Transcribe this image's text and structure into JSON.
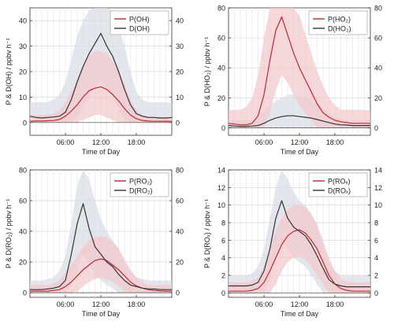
{
  "figure": {
    "x_tick_labels": [
      "06:00",
      "12:00",
      "18:00"
    ],
    "xlabel": "Time of Day"
  },
  "colors": {
    "production": "#c0272d",
    "destruction": "#333333",
    "production_band": "#f4c7cb",
    "destruction_band": "#d9dbe6"
  },
  "chart_data": [
    {
      "type": "line",
      "ylabel": "P & D(OH) / ppbv h⁻¹",
      "xlabel": "Time of Day",
      "xlim": [
        0,
        24
      ],
      "ylim": [
        -5,
        45
      ],
      "yticks": [
        0,
        10,
        20,
        30,
        40
      ],
      "right_axis_mirror": true,
      "legend_position": "top-right",
      "x_hours": [
        0,
        1,
        2,
        3,
        4,
        5,
        6,
        7,
        8,
        9,
        10,
        11,
        12,
        13,
        14,
        15,
        16,
        17,
        18,
        19,
        20,
        21,
        22,
        23,
        24
      ],
      "series": [
        {
          "name": "P(OH)",
          "role": "production",
          "values": [
            0.5,
            0.6,
            0.6,
            0.7,
            0.8,
            1.2,
            2.5,
            4.5,
            7,
            10,
            12.5,
            13.5,
            14,
            13,
            11,
            8.5,
            5.5,
            3,
            1.5,
            0.8,
            0.6,
            0.5,
            0.5,
            0.5,
            0.5
          ],
          "band_upper": [
            3,
            3,
            3,
            3,
            3.5,
            5,
            8,
            12,
            17,
            22,
            26,
            28,
            28,
            27,
            24,
            20,
            15,
            9,
            5,
            3,
            2.5,
            2,
            2,
            2,
            2
          ],
          "band_lower": [
            0,
            0,
            0,
            0,
            0,
            0,
            0,
            0,
            0,
            1,
            2,
            3,
            3,
            2,
            1,
            0,
            0,
            0,
            0,
            0,
            0,
            0,
            0,
            0,
            0
          ]
        },
        {
          "name": "D(OH)",
          "role": "destruction",
          "values": [
            2.5,
            2,
            1.8,
            2,
            2.2,
            2.5,
            4,
            9,
            16,
            22,
            27,
            31,
            35,
            30,
            26,
            20,
            13,
            7,
            3.5,
            2.5,
            2,
            2,
            1.8,
            1.8,
            2
          ],
          "band_upper": [
            8,
            8,
            8,
            8,
            9,
            11,
            16,
            25,
            34,
            40,
            44,
            45,
            45,
            45,
            44,
            38,
            30,
            20,
            12,
            9,
            8,
            8,
            8,
            8,
            8
          ],
          "band_lower": [
            0,
            0,
            0,
            0,
            0,
            0,
            0,
            0,
            2,
            6,
            10,
            14,
            16,
            14,
            10,
            5,
            1,
            0,
            0,
            0,
            0,
            0,
            0,
            0,
            0
          ]
        }
      ]
    },
    {
      "type": "line",
      "ylabel": "P & D(HO₂) / ppbv h⁻¹",
      "xlabel": "Time of Day",
      "xlim": [
        0,
        24
      ],
      "ylim": [
        -5,
        80
      ],
      "yticks": [
        0,
        20,
        40,
        60,
        80
      ],
      "right_axis_mirror": true,
      "legend_position": "top-right",
      "x_hours": [
        0,
        1,
        2,
        3,
        4,
        5,
        6,
        7,
        8,
        9,
        10,
        11,
        12,
        13,
        14,
        15,
        16,
        17,
        18,
        19,
        20,
        21,
        22,
        23,
        24
      ],
      "series": [
        {
          "name": "P(HO₂)",
          "role": "production",
          "values": [
            3,
            2.5,
            2,
            2,
            3,
            8,
            22,
            45,
            65,
            74,
            62,
            50,
            40,
            32,
            24,
            16,
            10,
            7,
            5,
            4,
            3.5,
            3,
            3,
            3,
            3
          ],
          "band_upper": [
            12,
            12,
            12,
            14,
            20,
            35,
            60,
            80,
            80,
            80,
            80,
            80,
            75,
            62,
            50,
            38,
            28,
            20,
            15,
            12,
            12,
            12,
            12,
            12,
            12
          ],
          "band_lower": [
            0,
            0,
            0,
            0,
            0,
            0,
            0,
            10,
            25,
            35,
            30,
            22,
            15,
            10,
            5,
            0,
            0,
            0,
            0,
            0,
            0,
            0,
            0,
            0,
            0
          ]
        },
        {
          "name": "D(HO₂)",
          "role": "destruction",
          "values": [
            1.5,
            1.2,
            1,
            1,
            1.2,
            1.5,
            3,
            5,
            6.5,
            7.5,
            8,
            8,
            7.5,
            7,
            6.5,
            5.5,
            4.5,
            3.5,
            2.5,
            2,
            1.8,
            1.5,
            1.5,
            1.5,
            1.5
          ],
          "band_upper": [
            5,
            5,
            5,
            5,
            5,
            6,
            10,
            15,
            18,
            20,
            22,
            22,
            21,
            20,
            18,
            16,
            13,
            10,
            7,
            6,
            5,
            5,
            5,
            5,
            5
          ],
          "band_lower": [
            0,
            0,
            0,
            0,
            0,
            0,
            0,
            0,
            0,
            0,
            0,
            0,
            0,
            0,
            0,
            0,
            0,
            0,
            0,
            0,
            0,
            0,
            0,
            0,
            0
          ]
        }
      ]
    },
    {
      "type": "line",
      "ylabel": "P & D(RO₂) / ppbv h⁻¹",
      "xlabel": "Time of Day",
      "xlim": [
        0,
        24
      ],
      "ylim": [
        -3,
        80
      ],
      "yticks": [
        0,
        20,
        40,
        60,
        80
      ],
      "right_axis_mirror": true,
      "legend_position": "top-right",
      "x_hours": [
        0,
        1,
        2,
        3,
        4,
        5,
        6,
        7,
        8,
        9,
        10,
        11,
        12,
        13,
        14,
        15,
        16,
        17,
        18,
        19,
        20,
        21,
        22,
        23,
        24
      ],
      "series": [
        {
          "name": "P(RO₂)",
          "role": "production",
          "values": [
            1,
            1,
            1,
            1,
            1.5,
            2,
            4,
            7,
            11,
            15,
            18,
            21,
            22,
            21,
            18,
            15,
            11,
            7,
            4.5,
            3,
            2,
            1.5,
            1.2,
            1,
            1
          ],
          "band_upper": [
            5,
            5,
            5,
            5,
            6,
            8,
            13,
            18,
            24,
            30,
            34,
            36,
            37,
            36,
            33,
            29,
            22,
            15,
            10,
            7,
            5,
            5,
            5,
            5,
            5
          ],
          "band_lower": [
            0,
            0,
            0,
            0,
            0,
            0,
            0,
            0,
            1,
            4,
            7,
            9,
            10,
            9,
            7,
            4,
            1,
            0,
            0,
            0,
            0,
            0,
            0,
            0,
            0
          ]
        },
        {
          "name": "D(RO₂)",
          "role": "destruction",
          "values": [
            2,
            2,
            2,
            2.5,
            3,
            4,
            8,
            25,
            45,
            58,
            42,
            30,
            25,
            20,
            17,
            12,
            8,
            5,
            4,
            3,
            2.5,
            2.5,
            2,
            2,
            2
          ],
          "band_upper": [
            8,
            8,
            8,
            9,
            10,
            14,
            24,
            45,
            70,
            80,
            74,
            60,
            48,
            40,
            34,
            28,
            20,
            14,
            10,
            9,
            8,
            8,
            8,
            8,
            8
          ],
          "band_lower": [
            0,
            0,
            0,
            0,
            0,
            0,
            0,
            5,
            15,
            25,
            18,
            12,
            8,
            5,
            3,
            0,
            0,
            0,
            0,
            0,
            0,
            0,
            0,
            0,
            0
          ]
        }
      ]
    },
    {
      "type": "line",
      "ylabel": "P & D(ROₓ) / ppbv h⁻¹",
      "xlabel": "Time of Day",
      "xlim": [
        0,
        24
      ],
      "ylim": [
        -0.5,
        14
      ],
      "yticks": [
        0,
        2,
        4,
        6,
        8,
        10,
        12,
        14
      ],
      "right_axis_mirror": true,
      "legend_position": "top-right",
      "x_hours": [
        0,
        1,
        2,
        3,
        4,
        5,
        6,
        7,
        8,
        9,
        10,
        11,
        12,
        13,
        14,
        15,
        16,
        17,
        18,
        19,
        20,
        21,
        22,
        23,
        24
      ],
      "series": [
        {
          "name": "P(ROₓ)",
          "role": "production",
          "values": [
            0.2,
            0.2,
            0.2,
            0.2,
            0.3,
            0.5,
            1.2,
            2.5,
            4,
            5.5,
            6.5,
            7,
            7.2,
            6.8,
            6,
            5,
            3.5,
            2,
            1,
            0.5,
            0.3,
            0.2,
            0.2,
            0.2,
            0.2
          ],
          "band_upper": [
            1.2,
            1.2,
            1.2,
            1.2,
            1.4,
            1.8,
            3,
            5,
            7,
            8.5,
            9.5,
            10,
            10,
            9.8,
            9,
            7.8,
            6,
            4,
            2.5,
            1.6,
            1.3,
            1.2,
            1.2,
            1.2,
            1.2
          ],
          "band_lower": [
            0,
            0,
            0,
            0,
            0,
            0,
            0,
            0,
            1,
            2.5,
            3.5,
            4,
            4.2,
            3.8,
            3,
            2,
            1,
            0,
            0,
            0,
            0,
            0,
            0,
            0,
            0
          ]
        },
        {
          "name": "D(ROₓ)",
          "role": "destruction",
          "values": [
            0.8,
            0.8,
            0.8,
            0.8,
            0.9,
            1.2,
            2.5,
            5,
            8.5,
            10.5,
            8.5,
            7.5,
            7,
            6.5,
            5.5,
            4.2,
            2.8,
            1.5,
            1,
            0.8,
            0.7,
            0.7,
            0.7,
            0.7,
            0.7
          ],
          "band_upper": [
            2,
            2,
            2,
            2,
            2.2,
            3,
            5,
            8.5,
            12,
            14,
            13,
            11.5,
            10.5,
            10,
            9,
            7.5,
            5.5,
            3.5,
            2.5,
            2,
            2,
            2,
            2,
            2,
            2
          ],
          "band_lower": [
            0,
            0,
            0,
            0,
            0,
            0,
            0,
            1.5,
            4,
            6,
            5,
            4,
            3.5,
            3,
            2,
            1,
            0,
            0,
            0,
            0,
            0,
            0,
            0,
            0,
            0
          ]
        }
      ]
    }
  ]
}
